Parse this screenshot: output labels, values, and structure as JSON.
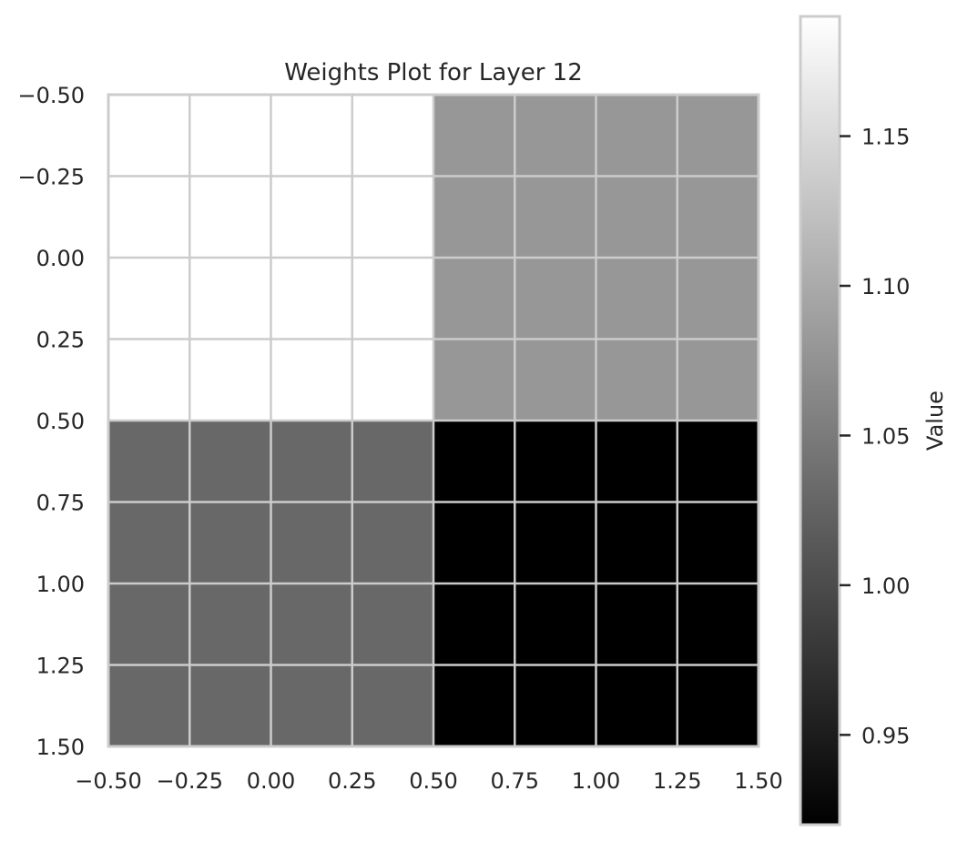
{
  "chart_data": {
    "type": "heatmap",
    "title": "Weights Plot for Layer 12",
    "x_ticks": [
      "−0.50",
      "−0.25",
      "0.00",
      "0.25",
      "0.50",
      "0.75",
      "1.00",
      "1.25",
      "1.50"
    ],
    "y_ticks": [
      "−0.50",
      "−0.25",
      "0.00",
      "0.25",
      "0.50",
      "0.75",
      "1.00",
      "1.25",
      "1.50"
    ],
    "xlim": [
      -0.5,
      1.5
    ],
    "ylim": [
      1.5,
      -0.5
    ],
    "grid": true,
    "cmap": "gray",
    "values": [
      [
        1.19,
        1.08
      ],
      [
        1.03,
        0.92
      ]
    ],
    "colorbar": {
      "label": "Value",
      "range": [
        0.92,
        1.19
      ],
      "ticks": [
        "0.95",
        "1.00",
        "1.05",
        "1.10",
        "1.15"
      ],
      "tick_values": [
        0.95,
        1.0,
        1.05,
        1.1,
        1.15
      ]
    }
  },
  "colors": {
    "grid": "#cccccc",
    "text": "#262626"
  }
}
